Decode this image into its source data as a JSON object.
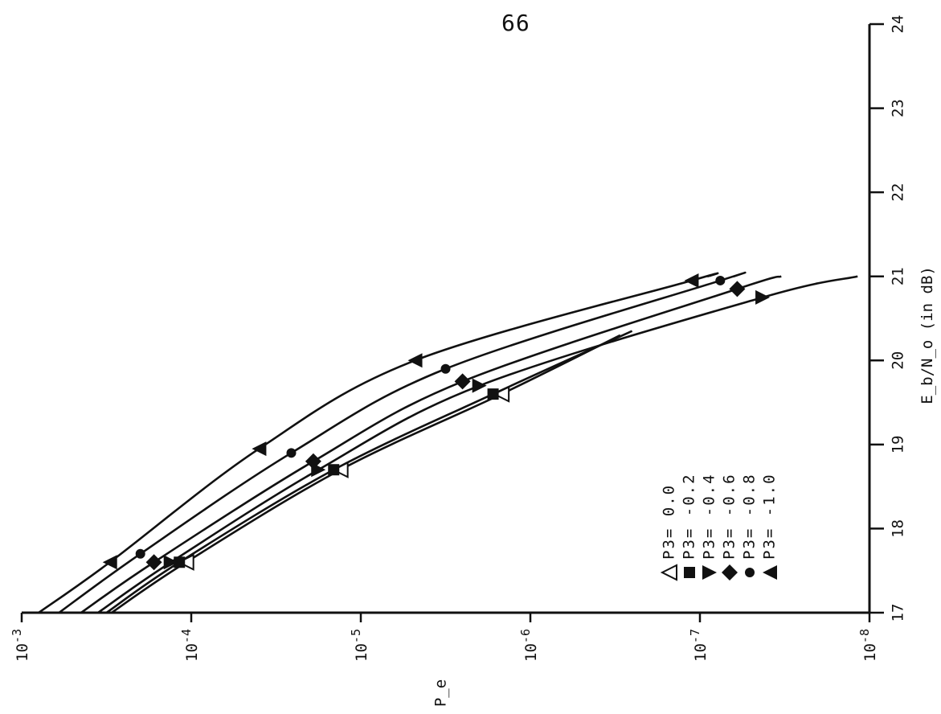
{
  "page": {
    "number": "66"
  },
  "chart_data": {
    "type": "line",
    "orientation": "rotated (P_e axis horizontal, Eb/No axis vertical on right)",
    "xlabel": "E_b/N_o (in dB)",
    "ylabel": "P_e",
    "x_ticks": [
      "17",
      "18",
      "19",
      "20",
      "21",
      "22",
      "23",
      "24"
    ],
    "y_ticks": [
      {
        "base": "10",
        "exp": "-3"
      },
      {
        "base": "10",
        "exp": "-4"
      },
      {
        "base": "10",
        "exp": "-5"
      },
      {
        "base": "10",
        "exp": "-6"
      },
      {
        "base": "10",
        "exp": "-7"
      },
      {
        "base": "10",
        "exp": "-8"
      }
    ],
    "xlim": [
      17,
      24
    ],
    "ylim_log10": [
      -3,
      -8
    ],
    "legend_position": "lower-middle",
    "series": [
      {
        "name": "P3= 0.0",
        "marker": "open-triangle",
        "points": [
          [
            17.0,
            -3.53
          ],
          [
            17.6,
            -3.97
          ],
          [
            18.7,
            -4.88
          ],
          [
            19.6,
            -5.83
          ],
          [
            20.3,
            -6.53
          ]
        ]
      },
      {
        "name": "P3= -0.2",
        "marker": "filled-square",
        "points": [
          [
            17.0,
            -3.5
          ],
          [
            17.6,
            -3.93
          ],
          [
            18.7,
            -4.84
          ],
          [
            19.6,
            -5.78
          ],
          [
            20.35,
            -6.6
          ]
        ]
      },
      {
        "name": "P3= -0.4",
        "marker": "filled-triangle-down",
        "points": [
          [
            17.0,
            -3.45
          ],
          [
            17.6,
            -3.88
          ],
          [
            18.7,
            -4.75
          ],
          [
            19.7,
            -5.7
          ],
          [
            20.75,
            -7.37
          ],
          [
            21.0,
            -7.93
          ]
        ]
      },
      {
        "name": "P3= -0.6",
        "marker": "filled-diamond",
        "points": [
          [
            17.0,
            -3.35
          ],
          [
            17.6,
            -3.78
          ],
          [
            18.8,
            -4.72
          ],
          [
            19.75,
            -5.6
          ],
          [
            20.85,
            -7.22
          ],
          [
            21.0,
            -7.48
          ]
        ]
      },
      {
        "name": "P3= -0.8",
        "marker": "filled-circle",
        "points": [
          [
            17.0,
            -3.22
          ],
          [
            17.7,
            -3.7
          ],
          [
            18.9,
            -4.59
          ],
          [
            19.9,
            -5.5
          ],
          [
            20.95,
            -7.12
          ],
          [
            21.0,
            -7.2
          ]
        ]
      },
      {
        "name": "P3= -1.0",
        "marker": "filled-triangle-left",
        "points": [
          [
            17.0,
            -3.1
          ],
          [
            17.6,
            -3.52
          ],
          [
            18.95,
            -4.4
          ],
          [
            20.0,
            -5.32
          ],
          [
            20.95,
            -6.95
          ],
          [
            21.0,
            -7.05
          ]
        ]
      }
    ],
    "legend": {
      "entries": [
        "P3= 0.0",
        "P3= -0.2",
        "P3= -0.4",
        "P3= -0.6",
        "P3= -0.8",
        "P3= -1.0"
      ]
    }
  }
}
